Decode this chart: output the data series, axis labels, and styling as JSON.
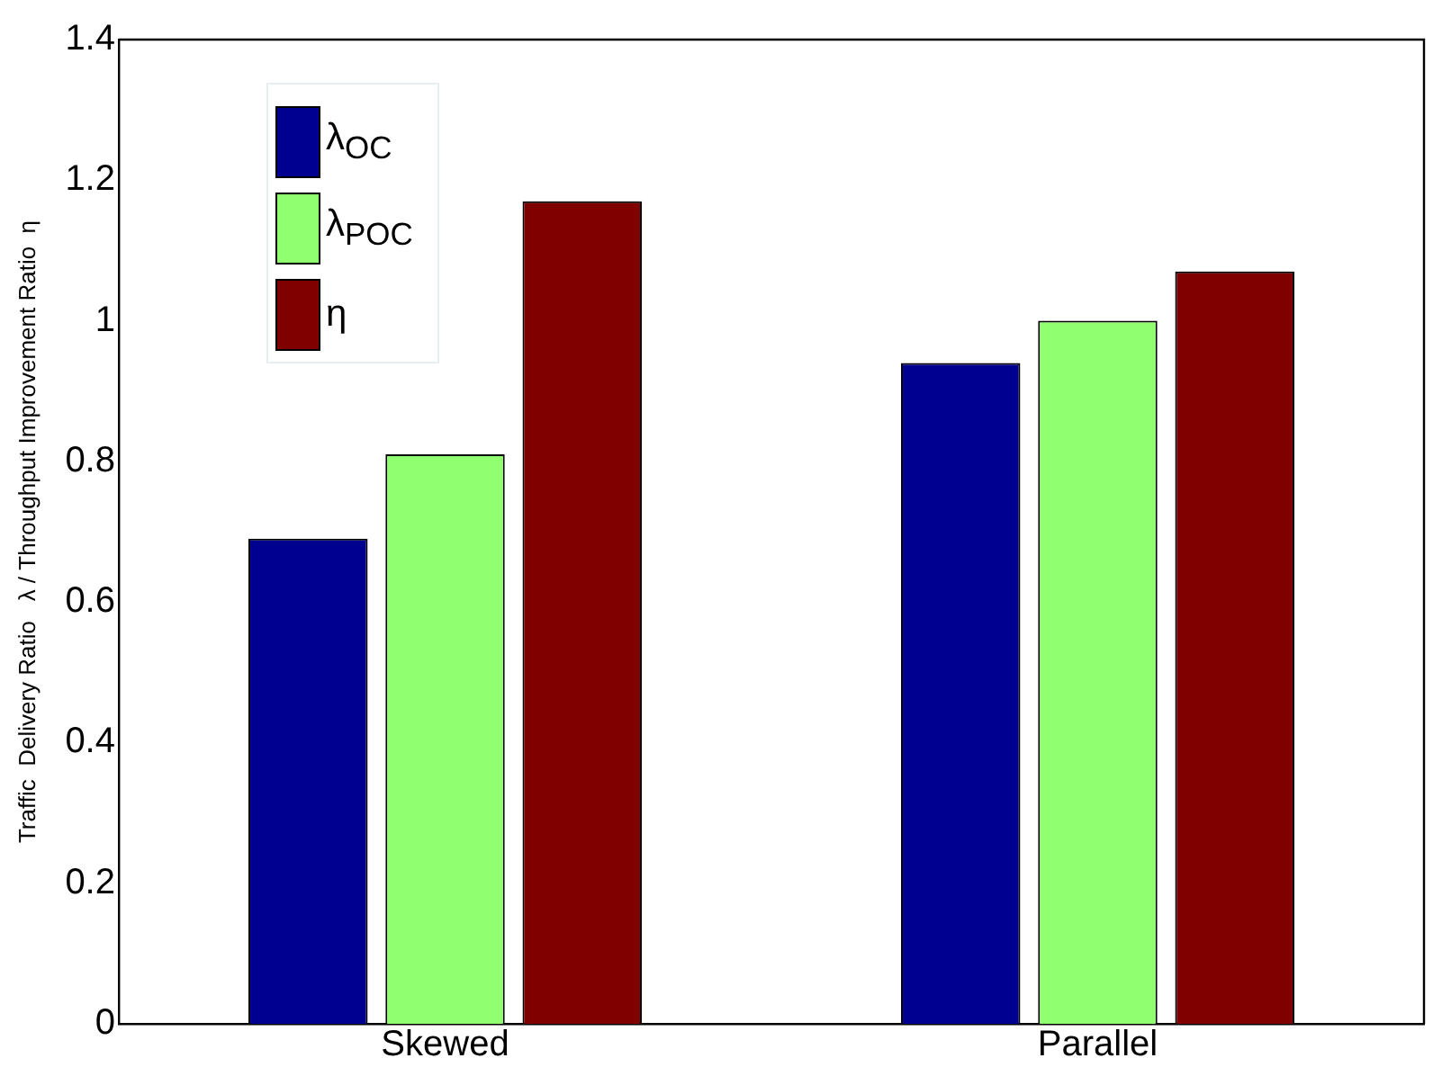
{
  "chart_data": {
    "type": "bar",
    "ylabel": "Traffic  Delivery Ratio   λ / Throughput Improvement Ratio  η",
    "categories": [
      "Skewed",
      "Parallel"
    ],
    "series": [
      {
        "name": "λ$_{OC}$",
        "color": "#000090",
        "values": [
          0.69,
          0.94
        ]
      },
      {
        "name": "λ$_{POC}$",
        "color": "#90ff70",
        "values": [
          0.81,
          1.0
        ]
      },
      {
        "name": "η",
        "color": "#800000",
        "values": [
          1.17,
          1.07
        ]
      }
    ],
    "ylim": [
      0,
      1.4
    ],
    "yticks": [
      0,
      0.2,
      0.4,
      0.6,
      0.8,
      1,
      1.2,
      1.4
    ],
    "grid": false,
    "legend": "top left"
  }
}
